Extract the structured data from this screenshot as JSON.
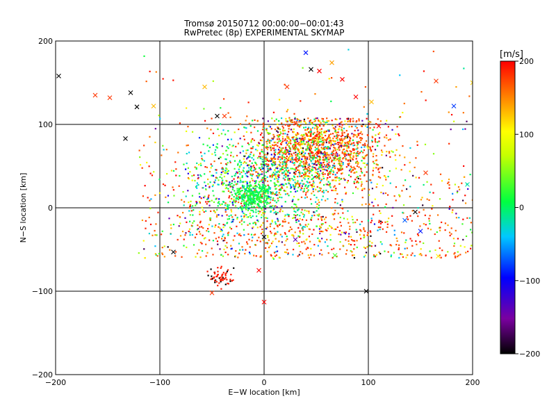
{
  "chart_data": {
    "type": "scatter",
    "title": "Tromsø 20150712 00:00:00−00:01:43",
    "subtitle": "RwPretec (8p) EXPERIMENTAL SKYMAP",
    "xlabel": "E−W location [km]",
    "ylabel": "N−S location [km]",
    "xlim": [
      -200,
      200
    ],
    "ylim": [
      -200,
      200
    ],
    "xticks": [
      -200,
      -100,
      0,
      100,
      200
    ],
    "yticks": [
      -200,
      -100,
      0,
      100,
      200
    ],
    "xtick_labels": [
      "−200",
      "−100",
      "0",
      "100",
      "200"
    ],
    "ytick_labels": [
      "−200",
      "−100",
      "0",
      "100",
      "200"
    ],
    "grid": true,
    "color_scale": {
      "label": "[m/s]",
      "range": [
        -200,
        200
      ],
      "ticks": [
        -200,
        -100,
        0,
        100,
        200
      ],
      "tick_labels": [
        "−200",
        "−100",
        "0",
        "100",
        "200"
      ],
      "colormap": "rainbow (black-purple-blue-cyan-green-yellow-red)"
    },
    "marker_types": [
      "small dot",
      "cross"
    ],
    "point_clusters": [
      {
        "region": "northeast cluster",
        "x_range": [
          0,
          100
        ],
        "y_range": [
          30,
          105
        ],
        "dominant_velocity": "positive (red/orange/yellow)"
      },
      {
        "region": "central cluster",
        "x_range": [
          -20,
          20
        ],
        "y_range": [
          0,
          50
        ],
        "dominant_velocity": "near zero (cyan/green)"
      },
      {
        "region": "southern patch",
        "x_range": [
          -50,
          -20
        ],
        "y_range": [
          -100,
          -70
        ],
        "dominant_velocity": "positive (red) with some negative (black)"
      }
    ],
    "sample_crosses": [
      {
        "x": -197,
        "y": 158,
        "v": -200
      },
      {
        "x": -162,
        "y": 135,
        "v": 180
      },
      {
        "x": -148,
        "y": 132,
        "v": 180
      },
      {
        "x": -128,
        "y": 138,
        "v": -200
      },
      {
        "x": -122,
        "y": 121,
        "v": -200
      },
      {
        "x": -133,
        "y": 83,
        "v": -200
      },
      {
        "x": -87,
        "y": -53,
        "v": -200
      },
      {
        "x": -57,
        "y": 145,
        "v": 130
      },
      {
        "x": -45,
        "y": 110,
        "v": -200
      },
      {
        "x": -38,
        "y": 110,
        "v": 180
      },
      {
        "x": -50,
        "y": -102,
        "v": 180
      },
      {
        "x": 22,
        "y": 145,
        "v": 180
      },
      {
        "x": 40,
        "y": 186,
        "v": -90
      },
      {
        "x": 45,
        "y": 166,
        "v": -200
      },
      {
        "x": 53,
        "y": 164,
        "v": 200
      },
      {
        "x": 65,
        "y": 174,
        "v": 140
      },
      {
        "x": 75,
        "y": 154,
        "v": 200
      },
      {
        "x": 88,
        "y": 133,
        "v": 200
      },
      {
        "x": 103,
        "y": 127,
        "v": 130
      },
      {
        "x": 98,
        "y": -100,
        "v": -200
      },
      {
        "x": 0,
        "y": -35,
        "v": -200
      },
      {
        "x": 0,
        "y": -113,
        "v": 200
      },
      {
        "x": -5,
        "y": -75,
        "v": 200
      },
      {
        "x": 68,
        "y": -57,
        "v": 30
      },
      {
        "x": 30,
        "y": -38,
        "v": -140
      },
      {
        "x": 150,
        "y": -28,
        "v": -90
      },
      {
        "x": 145,
        "y": -5,
        "v": -200
      },
      {
        "x": 135,
        "y": -15,
        "v": -70
      },
      {
        "x": 165,
        "y": 152,
        "v": 180
      },
      {
        "x": 182,
        "y": 122,
        "v": -80
      },
      {
        "x": 200,
        "y": 150,
        "v": 120
      },
      {
        "x": 195,
        "y": 28,
        "v": -20
      },
      {
        "x": 167,
        "y": -58,
        "v": 110
      },
      {
        "x": 155,
        "y": 42,
        "v": 180
      },
      {
        "x": 110,
        "y": 98,
        "v": 200
      },
      {
        "x": -106,
        "y": 122,
        "v": 130
      }
    ]
  }
}
